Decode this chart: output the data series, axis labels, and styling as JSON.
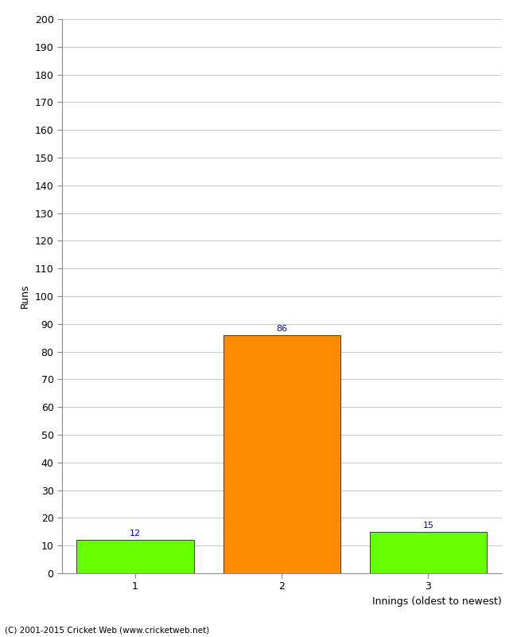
{
  "categories": [
    "1",
    "2",
    "3"
  ],
  "values": [
    12,
    86,
    15
  ],
  "bar_colors": [
    "#66ff00",
    "#ff8c00",
    "#66ff00"
  ],
  "ylabel": "Runs",
  "xlabel": "Innings (oldest to newest)",
  "ylim": [
    0,
    200
  ],
  "yticks": [
    0,
    10,
    20,
    30,
    40,
    50,
    60,
    70,
    80,
    90,
    100,
    110,
    120,
    130,
    140,
    150,
    160,
    170,
    180,
    190,
    200
  ],
  "label_color": "#0000cc",
  "label_fontsize": 8,
  "axis_label_fontsize": 9,
  "tick_fontsize": 9,
  "footer": "(C) 2001-2015 Cricket Web (www.cricketweb.net)",
  "background_color": "#ffffff",
  "bar_edge_color": "#000000",
  "bar_width": 0.8
}
